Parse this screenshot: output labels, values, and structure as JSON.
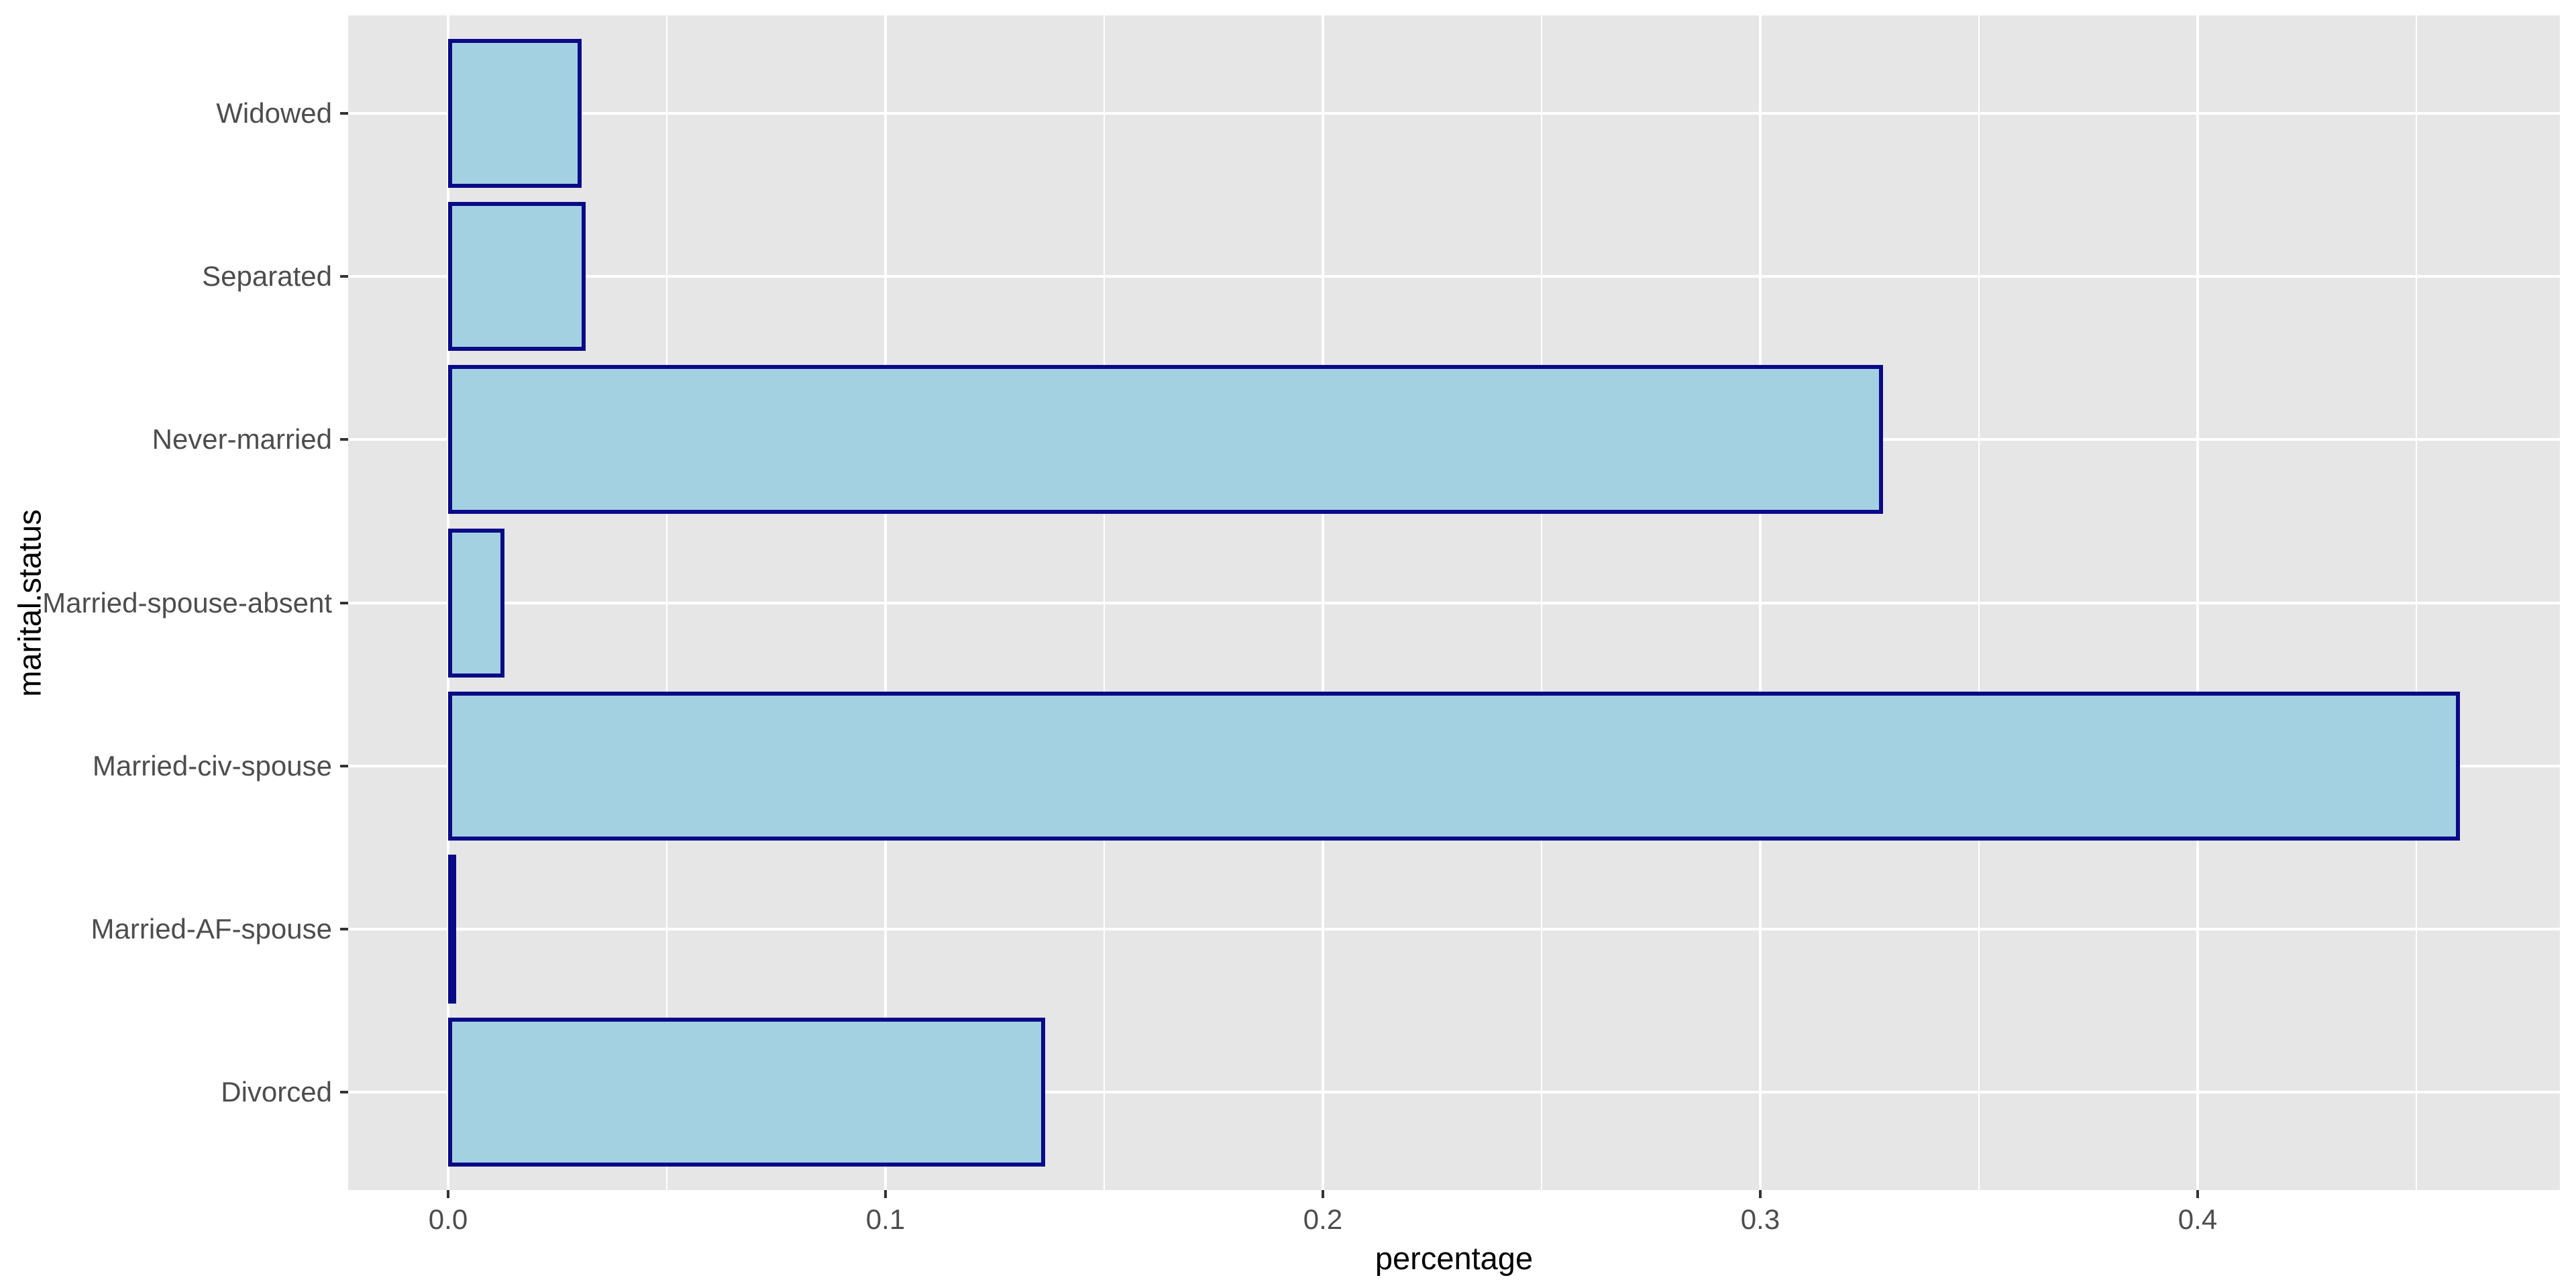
{
  "chart_data": {
    "type": "bar",
    "orientation": "horizontal",
    "title": "",
    "xlabel": "percentage",
    "ylabel": "marital.status",
    "categories_top_to_bottom": [
      "Widowed",
      "Separated",
      "Never-married",
      "Married-spouse-absent",
      "Married-civ-spouse",
      "Married-AF-spouse",
      "Divorced"
    ],
    "values": [
      0.0305,
      0.0315,
      0.328,
      0.0129,
      0.4599,
      0.0007,
      0.1365
    ],
    "x_ticks": [
      0.0,
      0.1,
      0.2,
      0.3,
      0.4
    ],
    "x_tick_labels": [
      "0.0",
      "0.1",
      "0.2",
      "0.3",
      "0.4"
    ],
    "x_minor_ticks": [
      0.05,
      0.15,
      0.25,
      0.35,
      0.45
    ],
    "xlim": [
      -0.023,
      0.483
    ],
    "grid": "on",
    "legend": "none",
    "colors": {
      "bar_fill": "#A3D1E2",
      "bar_border": "#0A0A87",
      "panel_background": "#E6E6E6",
      "gridline": "#FFFFFF",
      "tick_mark": "#333333",
      "tick_label": "#4D4D4D",
      "axis_title": "#000000",
      "figure_background": "#FFFFFF"
    }
  }
}
